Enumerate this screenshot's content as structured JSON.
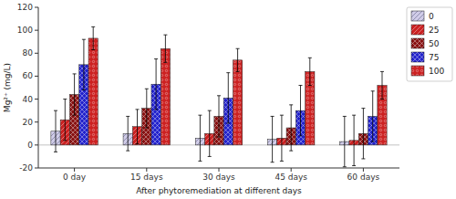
{
  "chart_data": {
    "type": "bar",
    "xlabel": "After phytoremediation at different days",
    "ylabel": "Mg²⁺ (mg/L)",
    "categories": [
      "0 day",
      "15 days",
      "30 days",
      "45 days",
      "60 days"
    ],
    "series": [
      {
        "name": "0",
        "color": "#d0cce8",
        "values": [
          12,
          10,
          6,
          5,
          3
        ],
        "errors": [
          18,
          15,
          20,
          20,
          22
        ]
      },
      {
        "name": "25",
        "color": "#cc2222",
        "values": [
          22,
          16,
          10,
          6,
          4
        ],
        "errors": [
          18,
          15,
          20,
          20,
          22
        ]
      },
      {
        "name": "50",
        "color": "#881111",
        "values": [
          44,
          32,
          25,
          15,
          10
        ],
        "errors": [
          18,
          17,
          18,
          20,
          22
        ]
      },
      {
        "name": "75",
        "color": "#2222cc",
        "values": [
          70,
          53,
          41,
          30,
          25
        ],
        "errors": [
          22,
          22,
          22,
          22,
          22
        ]
      },
      {
        "name": "100",
        "color": "#cc2222",
        "values": [
          93,
          84,
          74,
          64,
          52
        ],
        "errors": [
          10,
          12,
          10,
          12,
          12
        ]
      }
    ],
    "ylim": [
      -20,
      120
    ],
    "yticks": [
      -20,
      0,
      20,
      40,
      60,
      80,
      100,
      120
    ],
    "grid": false,
    "legend": "right"
  }
}
